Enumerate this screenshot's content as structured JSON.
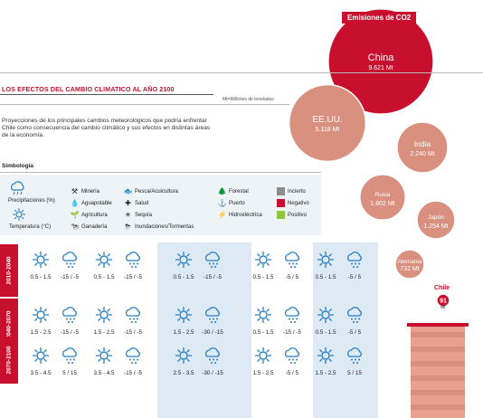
{
  "chart_data": {
    "type": "bubble",
    "title": "Emisiones de CO2",
    "unit_note": "Mt=Millones de toneladas",
    "series": [
      {
        "name": "China",
        "value": 9621,
        "label": "9.621 Mt"
      },
      {
        "name": "EE.UU.",
        "value": 5118,
        "label": "5.118 Mt"
      },
      {
        "name": "India",
        "value": 2240,
        "label": "2.240 Mt"
      },
      {
        "name": "Rusia",
        "value": 1802,
        "label": "1.802 Mt"
      },
      {
        "name": "Japón",
        "value": 1254,
        "label": "1.254 Mt"
      },
      {
        "name": "Alemania",
        "value": 732,
        "label": "732 Mt"
      },
      {
        "name": "Chile",
        "value": 91,
        "label": "91 Mt"
      }
    ],
    "colors": {
      "highlight": "#c8102e",
      "others": "#d9907f"
    }
  },
  "header": {
    "title": "LOS EFECTOS DEL CAMBIO CLIMATICO AL AÑO 2100",
    "units": "Mt=Millones de toneladas",
    "intro": "Proyecciones de los principales cambios meteorológicos que podría enfrentar Chile como consecuencia del cambio climático y sus efectos en distintas áreas de la economía."
  },
  "legend": {
    "title": "Simbología",
    "precip": "Precipitaciones (%)",
    "temp": "Temperatura (°C)",
    "items": [
      {
        "icon": "pickaxe-icon",
        "glyph": "⚒",
        "label": "Minería"
      },
      {
        "icon": "water-drop-icon",
        "glyph": "💧",
        "label": "Aguapotable"
      },
      {
        "icon": "plant-icon",
        "glyph": "🌱",
        "label": "Agricultura"
      },
      {
        "icon": "cow-icon",
        "glyph": "🐄",
        "label": "Ganadería"
      },
      {
        "icon": "fish-icon",
        "glyph": "🐟",
        "label": "Pesca/Acuicultura"
      },
      {
        "icon": "health-icon",
        "glyph": "✚",
        "label": "Salud"
      },
      {
        "icon": "drought-icon",
        "glyph": "☀",
        "label": "Sequía"
      },
      {
        "icon": "storm-icon",
        "glyph": "⛈",
        "label": "Inundaciones/Tormentas"
      },
      {
        "icon": "tree-icon",
        "glyph": "🌲",
        "label": "Forestal"
      },
      {
        "icon": "anchor-icon",
        "glyph": "⚓",
        "label": "Puerto"
      },
      {
        "icon": "dam-icon",
        "glyph": "⚡",
        "label": "Hidroeléctrica"
      }
    ],
    "status": [
      {
        "label": "Incierto",
        "color": "#8c8c8c"
      },
      {
        "label": "Negativo",
        "color": "#c8102e"
      },
      {
        "label": "Positivo",
        "color": "#8dc63f"
      }
    ]
  },
  "periods": [
    "2010-2040",
    "2040-2070",
    "2070-2100"
  ],
  "grid": [
    [
      [
        "0.5 - 1.5",
        "-15 / -5"
      ],
      [
        "0.5 - 1.5",
        "-15 / -5"
      ],
      [
        "0.5 - 1.5",
        "-15 / -5"
      ],
      [
        "0.5 - 1.5",
        "-5 / 5"
      ],
      [
        "0.5 - 1.5",
        "-5 / 5"
      ]
    ],
    [
      [
        "1.5 - 2.5",
        "-15 / -5"
      ],
      [
        "1.5 - 2.5",
        "-15 / -5"
      ],
      [
        "1.5 - 2.5",
        "-30 / -15"
      ],
      [
        "0.5 - 1.5",
        "-15 / -5"
      ],
      [
        "0.5 - 1.5",
        "-5 / 5"
      ]
    ],
    [
      [
        "3.5 - 4.5",
        "5 / 15"
      ],
      [
        "3.5 - 4.5",
        "-15 / -5"
      ],
      [
        "2.5 - 3.5",
        "-30 / -15"
      ],
      [
        "1.5 - 2.5",
        "-5 / 5"
      ],
      [
        "1.5 - 2.5",
        "5 / 15"
      ]
    ]
  ]
}
